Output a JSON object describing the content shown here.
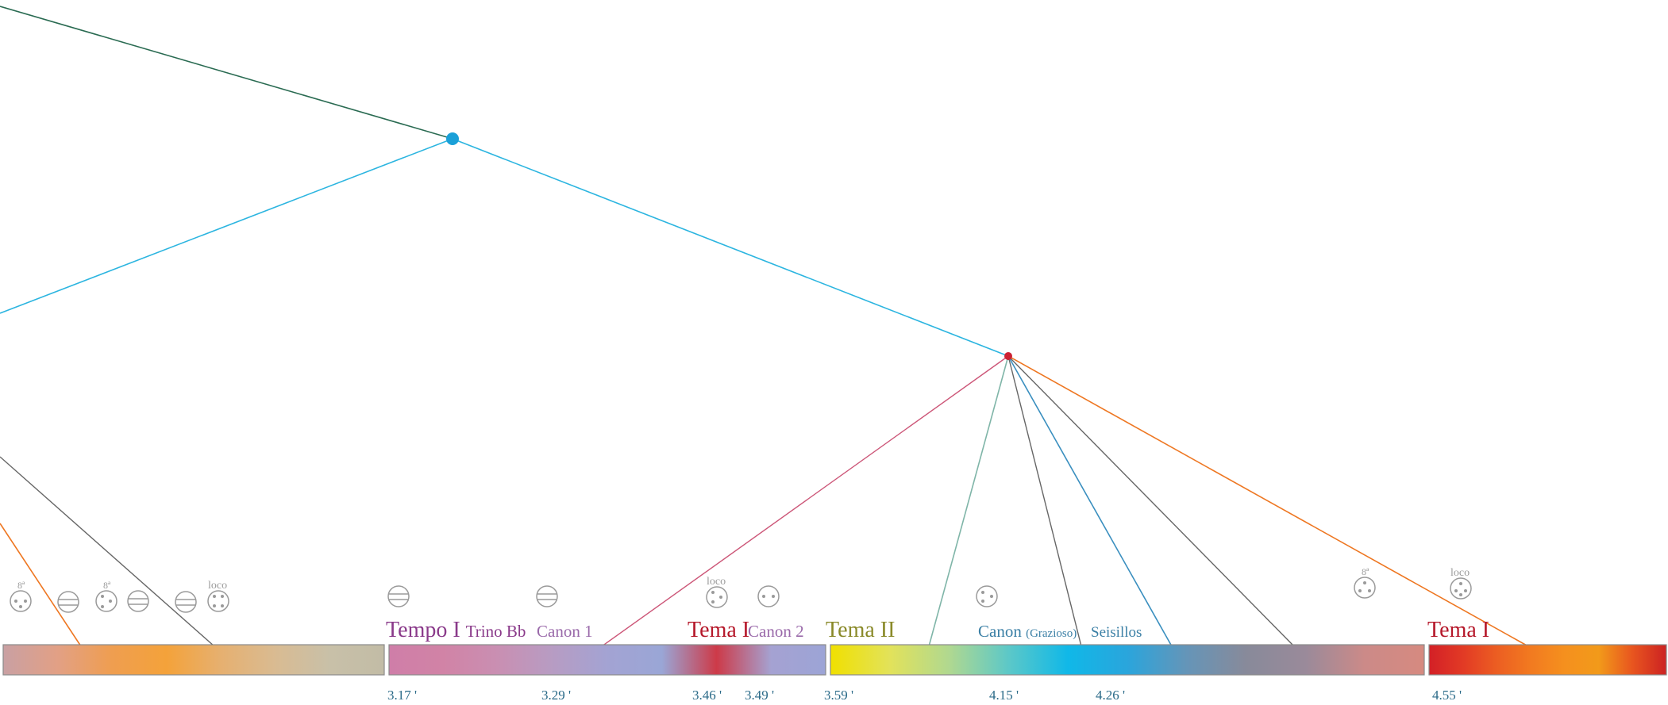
{
  "colors": {
    "node_blue": "#1aa0d8",
    "node_red": "#cc2233",
    "line_green": "#2a6b52",
    "line_cyan": "#2cb5e0",
    "line_pink": "#cc5577",
    "line_teal": "#7fb5a8",
    "line_gray": "#666666",
    "line_blue": "#3a8fbf",
    "line_orange": "#ee7722",
    "label_purple": "#8a3a8a",
    "label_violet": "#9a6aaa",
    "label_red": "#b5182a",
    "label_olive": "#8a8a2a",
    "label_blue": "#3a7fa5",
    "time_teal": "#2a6a88",
    "icon_gray": "#9a9a9a"
  },
  "sections": [
    {
      "title": "Tempo I",
      "subtitle": "Trino Bb",
      "title_color": "#8a3a8a"
    },
    {
      "title": "Canon 1",
      "subtitle": "",
      "title_color": "#9a6aaa"
    },
    {
      "title": "Tema I",
      "subtitle": "",
      "title_color": "#b5182a"
    },
    {
      "title": "Canon 2",
      "subtitle": "",
      "title_color": "#9a6aaa"
    },
    {
      "title": "Tema II",
      "subtitle": "",
      "title_color": "#8a8a2a"
    },
    {
      "title": "Canon",
      "subtitle": "(Grazioso)",
      "title_color": "#3a7fa5"
    },
    {
      "title": "Seisillos",
      "subtitle": "",
      "title_color": "#3a7fa5"
    },
    {
      "title": "Tema I",
      "subtitle": "",
      "title_color": "#b5182a"
    }
  ],
  "times": [
    "3.17 '",
    "3.29 '",
    "3.46 '",
    "3.49 '",
    "3.59 '",
    "4.15 '",
    "4.26 '",
    "4.55 '"
  ],
  "annotations": {
    "octave": "8ª",
    "loco": "loco"
  },
  "bars": [
    {
      "stops": [
        "#c9a0a3",
        "#e2a085",
        "#ef9e50",
        "#f4a23a",
        "#e6b070",
        "#d9bb92",
        "#c8c0a8",
        "#c2bca6"
      ]
    },
    {
      "stops": [
        "#cf7ea8",
        "#d183a6",
        "#c98fb2",
        "#b79cc3",
        "#a3a3d3",
        "#9aa6d6",
        "#cd3a48",
        "#a5a2d2",
        "#9ca4d6"
      ]
    },
    {
      "stops": [
        "#f0e000",
        "#e2e25a",
        "#b0d890",
        "#5cc8c8",
        "#10b8e8",
        "#2aa5dc",
        "#6595b8",
        "#888a9a",
        "#9a8a9a",
        "#cc8a88",
        "#d68a80"
      ]
    },
    {
      "stops": [
        "#d32026",
        "#e23a25",
        "#ec5e22",
        "#f27a20",
        "#f5901e",
        "#f29a1a",
        "#e8551f",
        "#cc2222"
      ]
    }
  ]
}
